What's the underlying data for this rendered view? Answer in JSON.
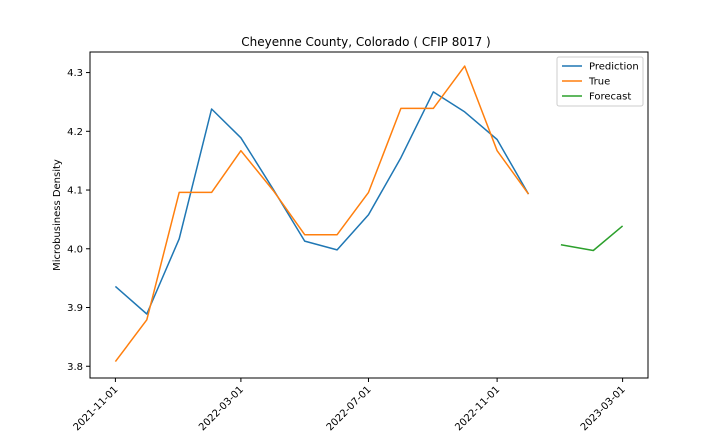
{
  "chart_data": {
    "type": "line",
    "title": "Cheyenne County, Colorado ( CFIP 8017 )",
    "xlabel": "",
    "ylabel": "Microbusiness Density",
    "x_tick_labels": [
      "2021-11-01",
      "2022-03-01",
      "2022-07-01",
      "2022-11-01",
      "2023-03-01"
    ],
    "y_tick_labels": [
      "3.8",
      "3.9",
      "4.0",
      "4.1",
      "4.2",
      "4.3"
    ],
    "ylim": [
      3.78,
      4.335
    ],
    "legend_position": "top-right",
    "grid": false,
    "series": [
      {
        "name": "Prediction",
        "color": "#1f77b4",
        "x": [
          "2021-11-01",
          "2021-12-01",
          "2022-01-01",
          "2022-02-01",
          "2022-03-01",
          "2022-04-01",
          "2022-05-01",
          "2022-06-01",
          "2022-07-01",
          "2022-08-01",
          "2022-09-01",
          "2022-10-01",
          "2022-11-01",
          "2022-12-01"
        ],
        "values": [
          3.936,
          3.889,
          4.017,
          4.238,
          4.189,
          4.101,
          4.013,
          3.998,
          4.058,
          4.155,
          4.267,
          4.233,
          4.186,
          4.093
        ]
      },
      {
        "name": "True",
        "color": "#ff7f0e",
        "x": [
          "2021-11-01",
          "2021-12-01",
          "2022-01-01",
          "2022-02-01",
          "2022-03-01",
          "2022-04-01",
          "2022-05-01",
          "2022-06-01",
          "2022-07-01",
          "2022-08-01",
          "2022-09-01",
          "2022-10-01",
          "2022-11-01",
          "2022-12-01"
        ],
        "values": [
          3.808,
          3.879,
          4.096,
          4.096,
          4.167,
          4.099,
          4.024,
          4.024,
          4.096,
          4.239,
          4.239,
          4.311,
          4.167,
          4.093
        ]
      },
      {
        "name": "Forecast",
        "color": "#2ca02c",
        "x": [
          "2023-01-01",
          "2023-02-01",
          "2023-03-01"
        ],
        "values": [
          4.007,
          3.997,
          4.039
        ]
      }
    ]
  }
}
